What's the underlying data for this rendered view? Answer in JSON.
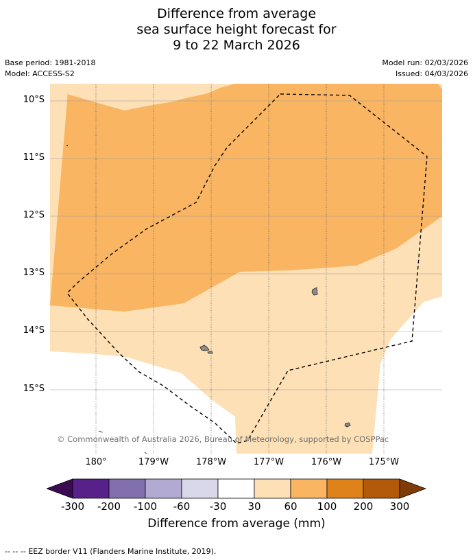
{
  "header": {
    "title_line1": "Difference from average",
    "title_line2": "sea surface height forecast for",
    "title_line3": "9 to 22 March 2026",
    "base_period": "Base period: 1981-2018",
    "model": "Model: ACCESS-S2",
    "model_run": "Model run: 02/03/2026",
    "issued": "Issued: 04/03/2026"
  },
  "map": {
    "lat_labels": [
      "10°S",
      "11°S",
      "12°S",
      "13°S",
      "14°S",
      "15°S"
    ],
    "lon_labels": [
      "180°",
      "179°W",
      "178°W",
      "177°W",
      "176°W",
      "175°W"
    ],
    "copyright": "© Commonwealth of Australia 2026, Bureau of Meteorology, supported by COSPPac",
    "colors": {
      "band_30_60": "#fde0b6",
      "band_60_100": "#f9b562",
      "land": "#8c8c8c",
      "eez_line": "#000000"
    }
  },
  "colorbar": {
    "labels": [
      "-300",
      "-200",
      "-100",
      "-60",
      "-30",
      "30",
      "60",
      "100",
      "200",
      "300"
    ],
    "colors": [
      "#3b0c52",
      "#58218a",
      "#8170ad",
      "#b2aad3",
      "#d8d8ea",
      "#ffffff",
      "#fde0b6",
      "#f9b562",
      "#e0821a",
      "#b35a0a",
      "#7f3b08"
    ],
    "title": "Difference from average (mm)"
  },
  "legend": {
    "eez_symbol": "--  --  --",
    "eez_text": "EEZ border V11 (Flanders Marine Institute, 2019)."
  }
}
